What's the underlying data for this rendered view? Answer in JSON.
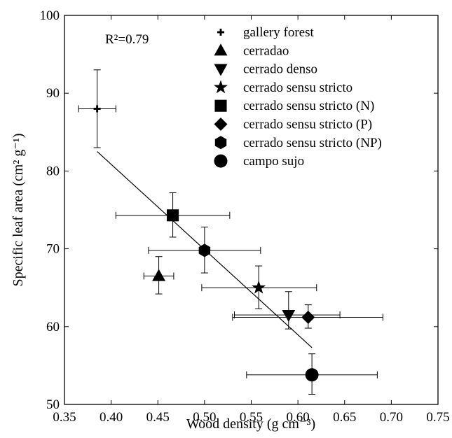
{
  "chart_data": {
    "type": "scatter",
    "xlabel": "Wood density (g cm⁻³)",
    "ylabel": "Specific leaf area (cm² g⁻¹)",
    "xlim": [
      0.35,
      0.75
    ],
    "ylim": [
      50,
      100
    ],
    "xticks": [
      "0.35",
      "0.40",
      "0.45",
      "0.50",
      "0.55",
      "0.60",
      "0.65",
      "0.70",
      "0.75"
    ],
    "yticks": [
      "50",
      "60",
      "70",
      "80",
      "90",
      "100"
    ],
    "annotation": "R²=0.79",
    "grid": false,
    "legend_position": "top-right",
    "series": [
      {
        "name": "gallery forest",
        "marker": "cross",
        "x": 0.385,
        "y": 88.0,
        "xerr": [
          0.365,
          0.405
        ],
        "yerr": [
          83.0,
          93.0
        ]
      },
      {
        "name": "cerradao",
        "marker": "triangle-up",
        "x": 0.451,
        "y": 66.5,
        "xerr": [
          0.435,
          0.467
        ],
        "yerr": [
          64.2,
          69.0
        ]
      },
      {
        "name": "cerrado denso",
        "marker": "triangle-down",
        "x": 0.59,
        "y": 61.5,
        "xerr": [
          0.532,
          0.645
        ],
        "yerr": [
          59.7,
          64.5
        ]
      },
      {
        "name": "cerrado sensu stricto",
        "marker": "star",
        "x": 0.558,
        "y": 65.0,
        "xerr": [
          0.497,
          0.62
        ],
        "yerr": [
          62.3,
          67.8
        ]
      },
      {
        "name": "cerrado sensu stricto (N)",
        "marker": "square",
        "x": 0.466,
        "y": 74.3,
        "xerr": [
          0.405,
          0.527
        ],
        "yerr": [
          71.5,
          77.2
        ]
      },
      {
        "name": "cerrado sensu stricto (P)",
        "marker": "diamond",
        "x": 0.611,
        "y": 61.2,
        "xerr": [
          0.53,
          0.691
        ],
        "yerr": [
          59.8,
          62.8
        ]
      },
      {
        "name": "cerrado sensu stricto (NP)",
        "marker": "hexagon",
        "x": 0.5,
        "y": 69.8,
        "xerr": [
          0.44,
          0.56
        ],
        "yerr": [
          66.9,
          72.8
        ]
      },
      {
        "name": "campo sujo",
        "marker": "circle",
        "x": 0.615,
        "y": 53.8,
        "xerr": [
          0.545,
          0.685
        ],
        "yerr": [
          51.3,
          56.5
        ]
      }
    ],
    "regression_line": {
      "x": [
        0.385,
        0.615
      ],
      "y": [
        82.5,
        57.3
      ]
    }
  }
}
